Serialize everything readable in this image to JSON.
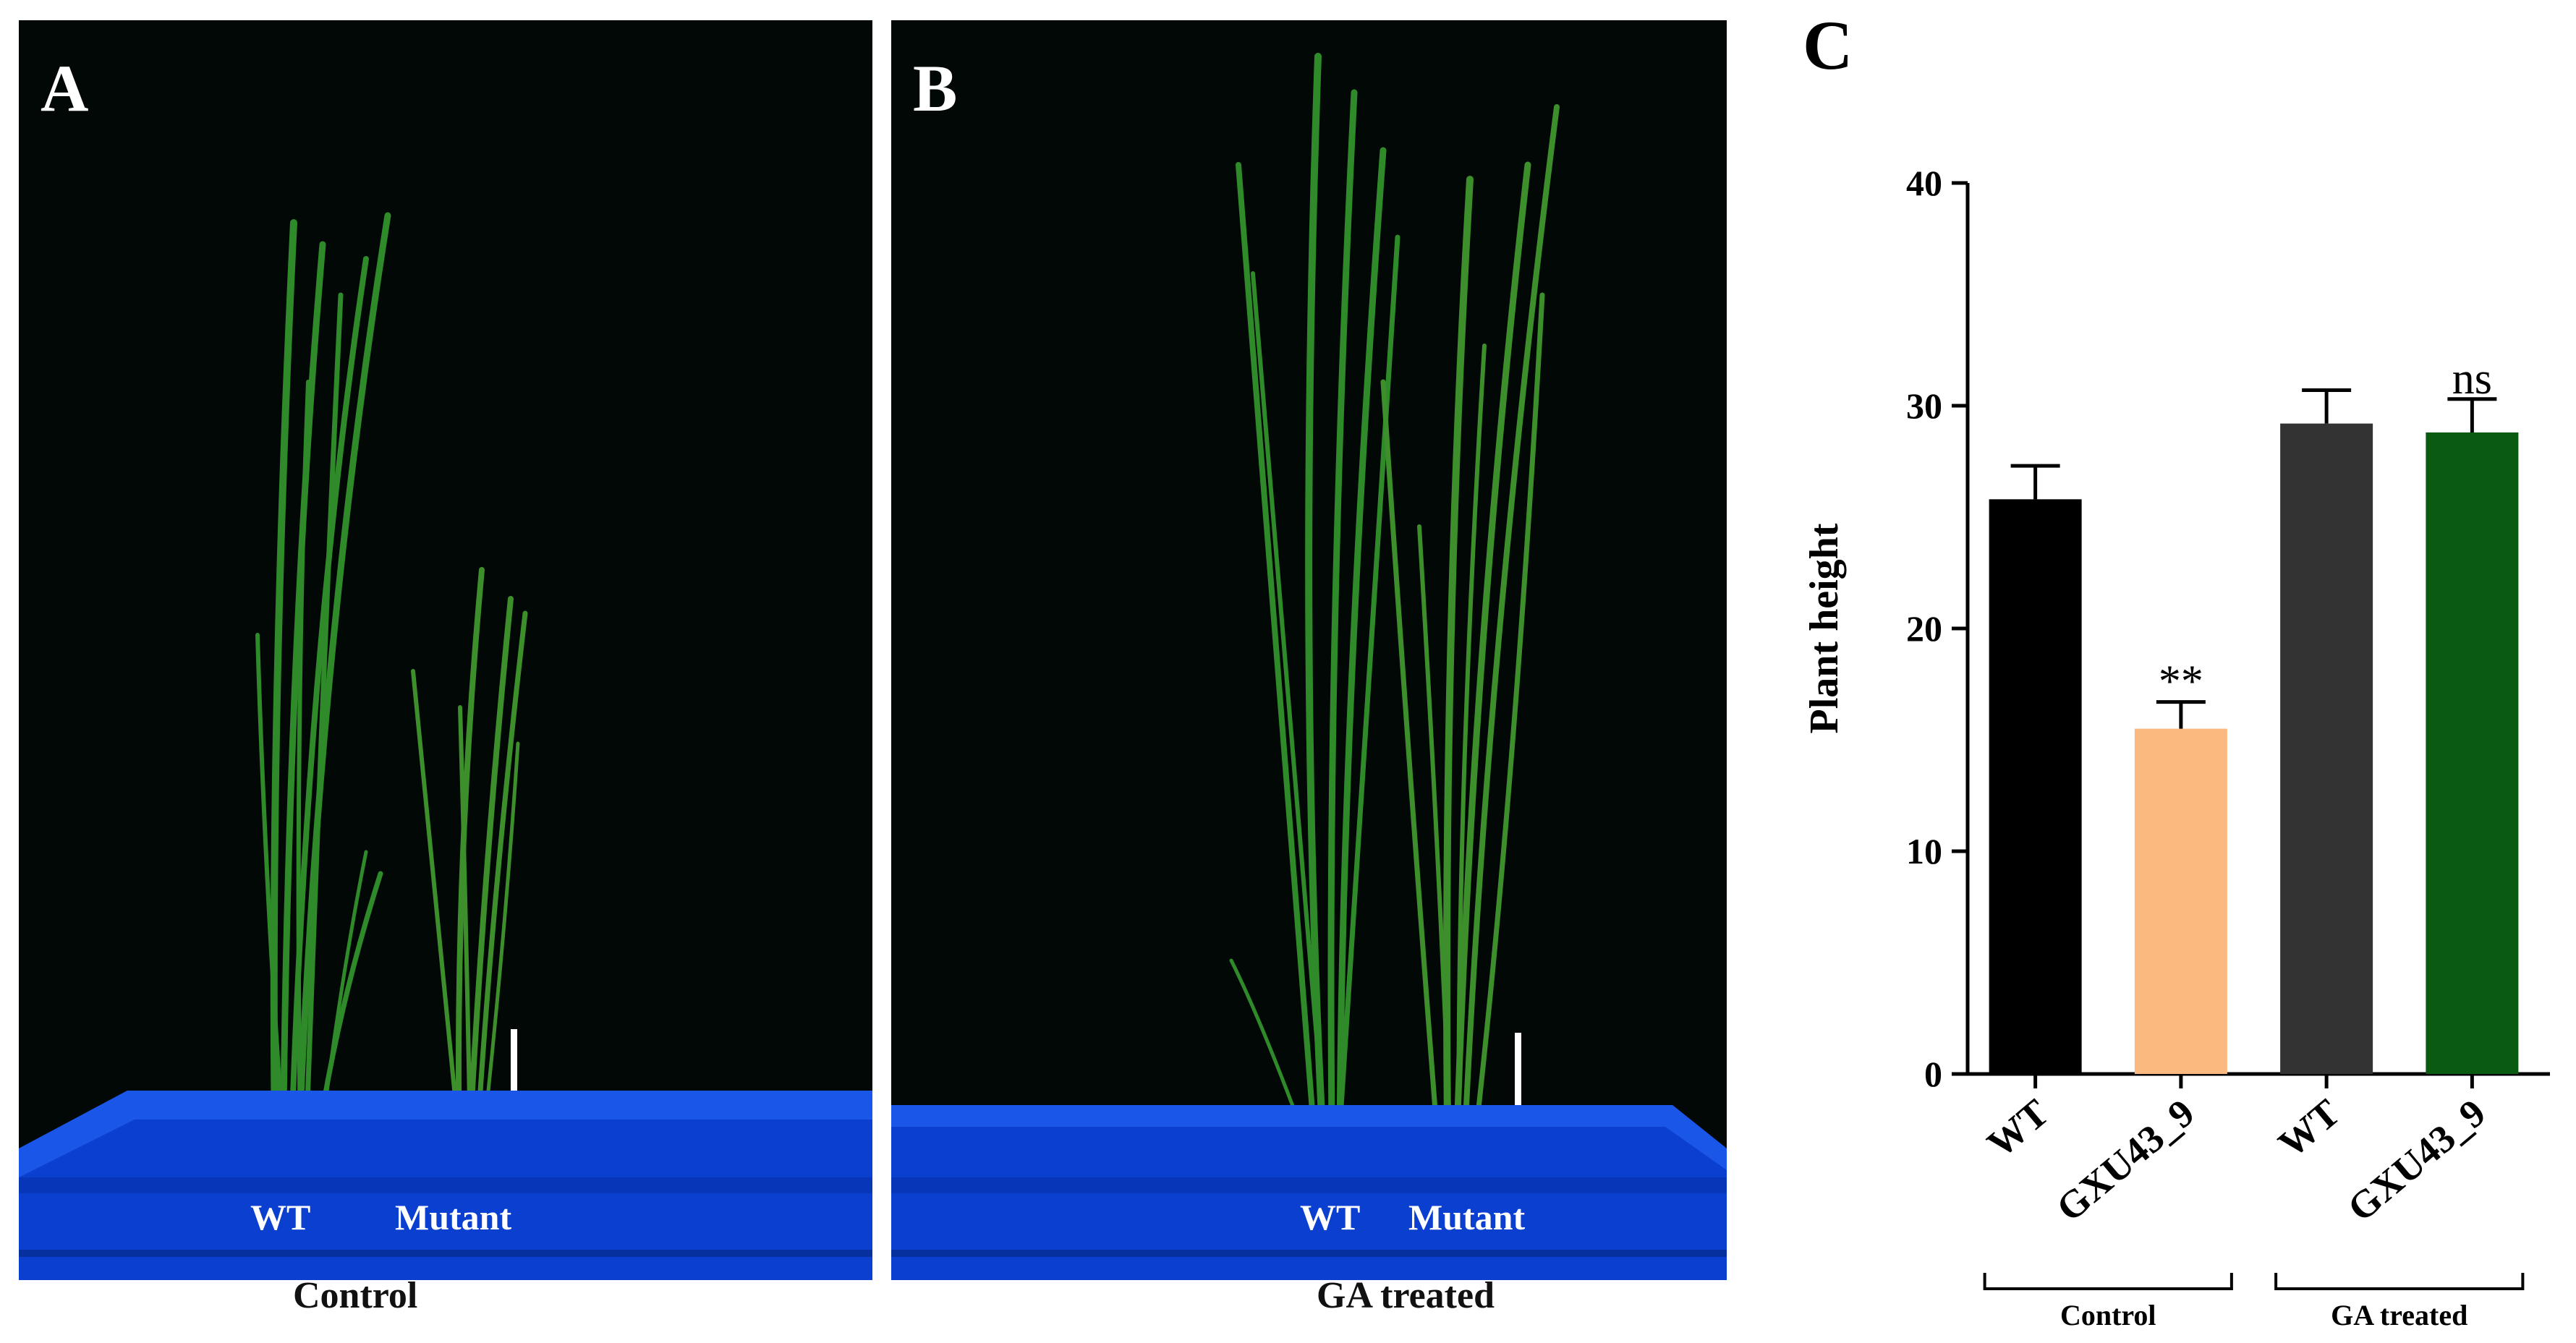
{
  "panel_a": {
    "letter": "A",
    "labels": [
      "WT",
      "Mutant"
    ],
    "caption": "Control"
  },
  "panel_b": {
    "letter": "B",
    "labels": [
      "WT",
      "Mutant"
    ],
    "caption": "GA treated"
  },
  "colors": {
    "photo_background": "#020806",
    "tray": "#0a3fd0",
    "leaf": "#2f8a2a"
  },
  "chart_data": {
    "type": "bar",
    "panel_letter": "C",
    "title": "",
    "xlabel": "",
    "ylabel": "Plant height",
    "ylim": [
      0,
      40
    ],
    "yticks": [
      0,
      10,
      20,
      30,
      40
    ],
    "categories": [
      "WT",
      "GXU43_9",
      "WT",
      "GXU43_9"
    ],
    "values": [
      25.8,
      15.5,
      29.2,
      28.8
    ],
    "errors": [
      1.5,
      1.2,
      1.5,
      1.5
    ],
    "bar_colors": [
      "#000000",
      "#fbb97f",
      "#333333",
      "#0a5a12"
    ],
    "annotations": [
      "",
      "**",
      "",
      "ns"
    ],
    "groups": [
      {
        "label": "Control",
        "members": [
          0,
          1
        ]
      },
      {
        "label": "GA  treated",
        "members": [
          2,
          3
        ]
      }
    ]
  }
}
